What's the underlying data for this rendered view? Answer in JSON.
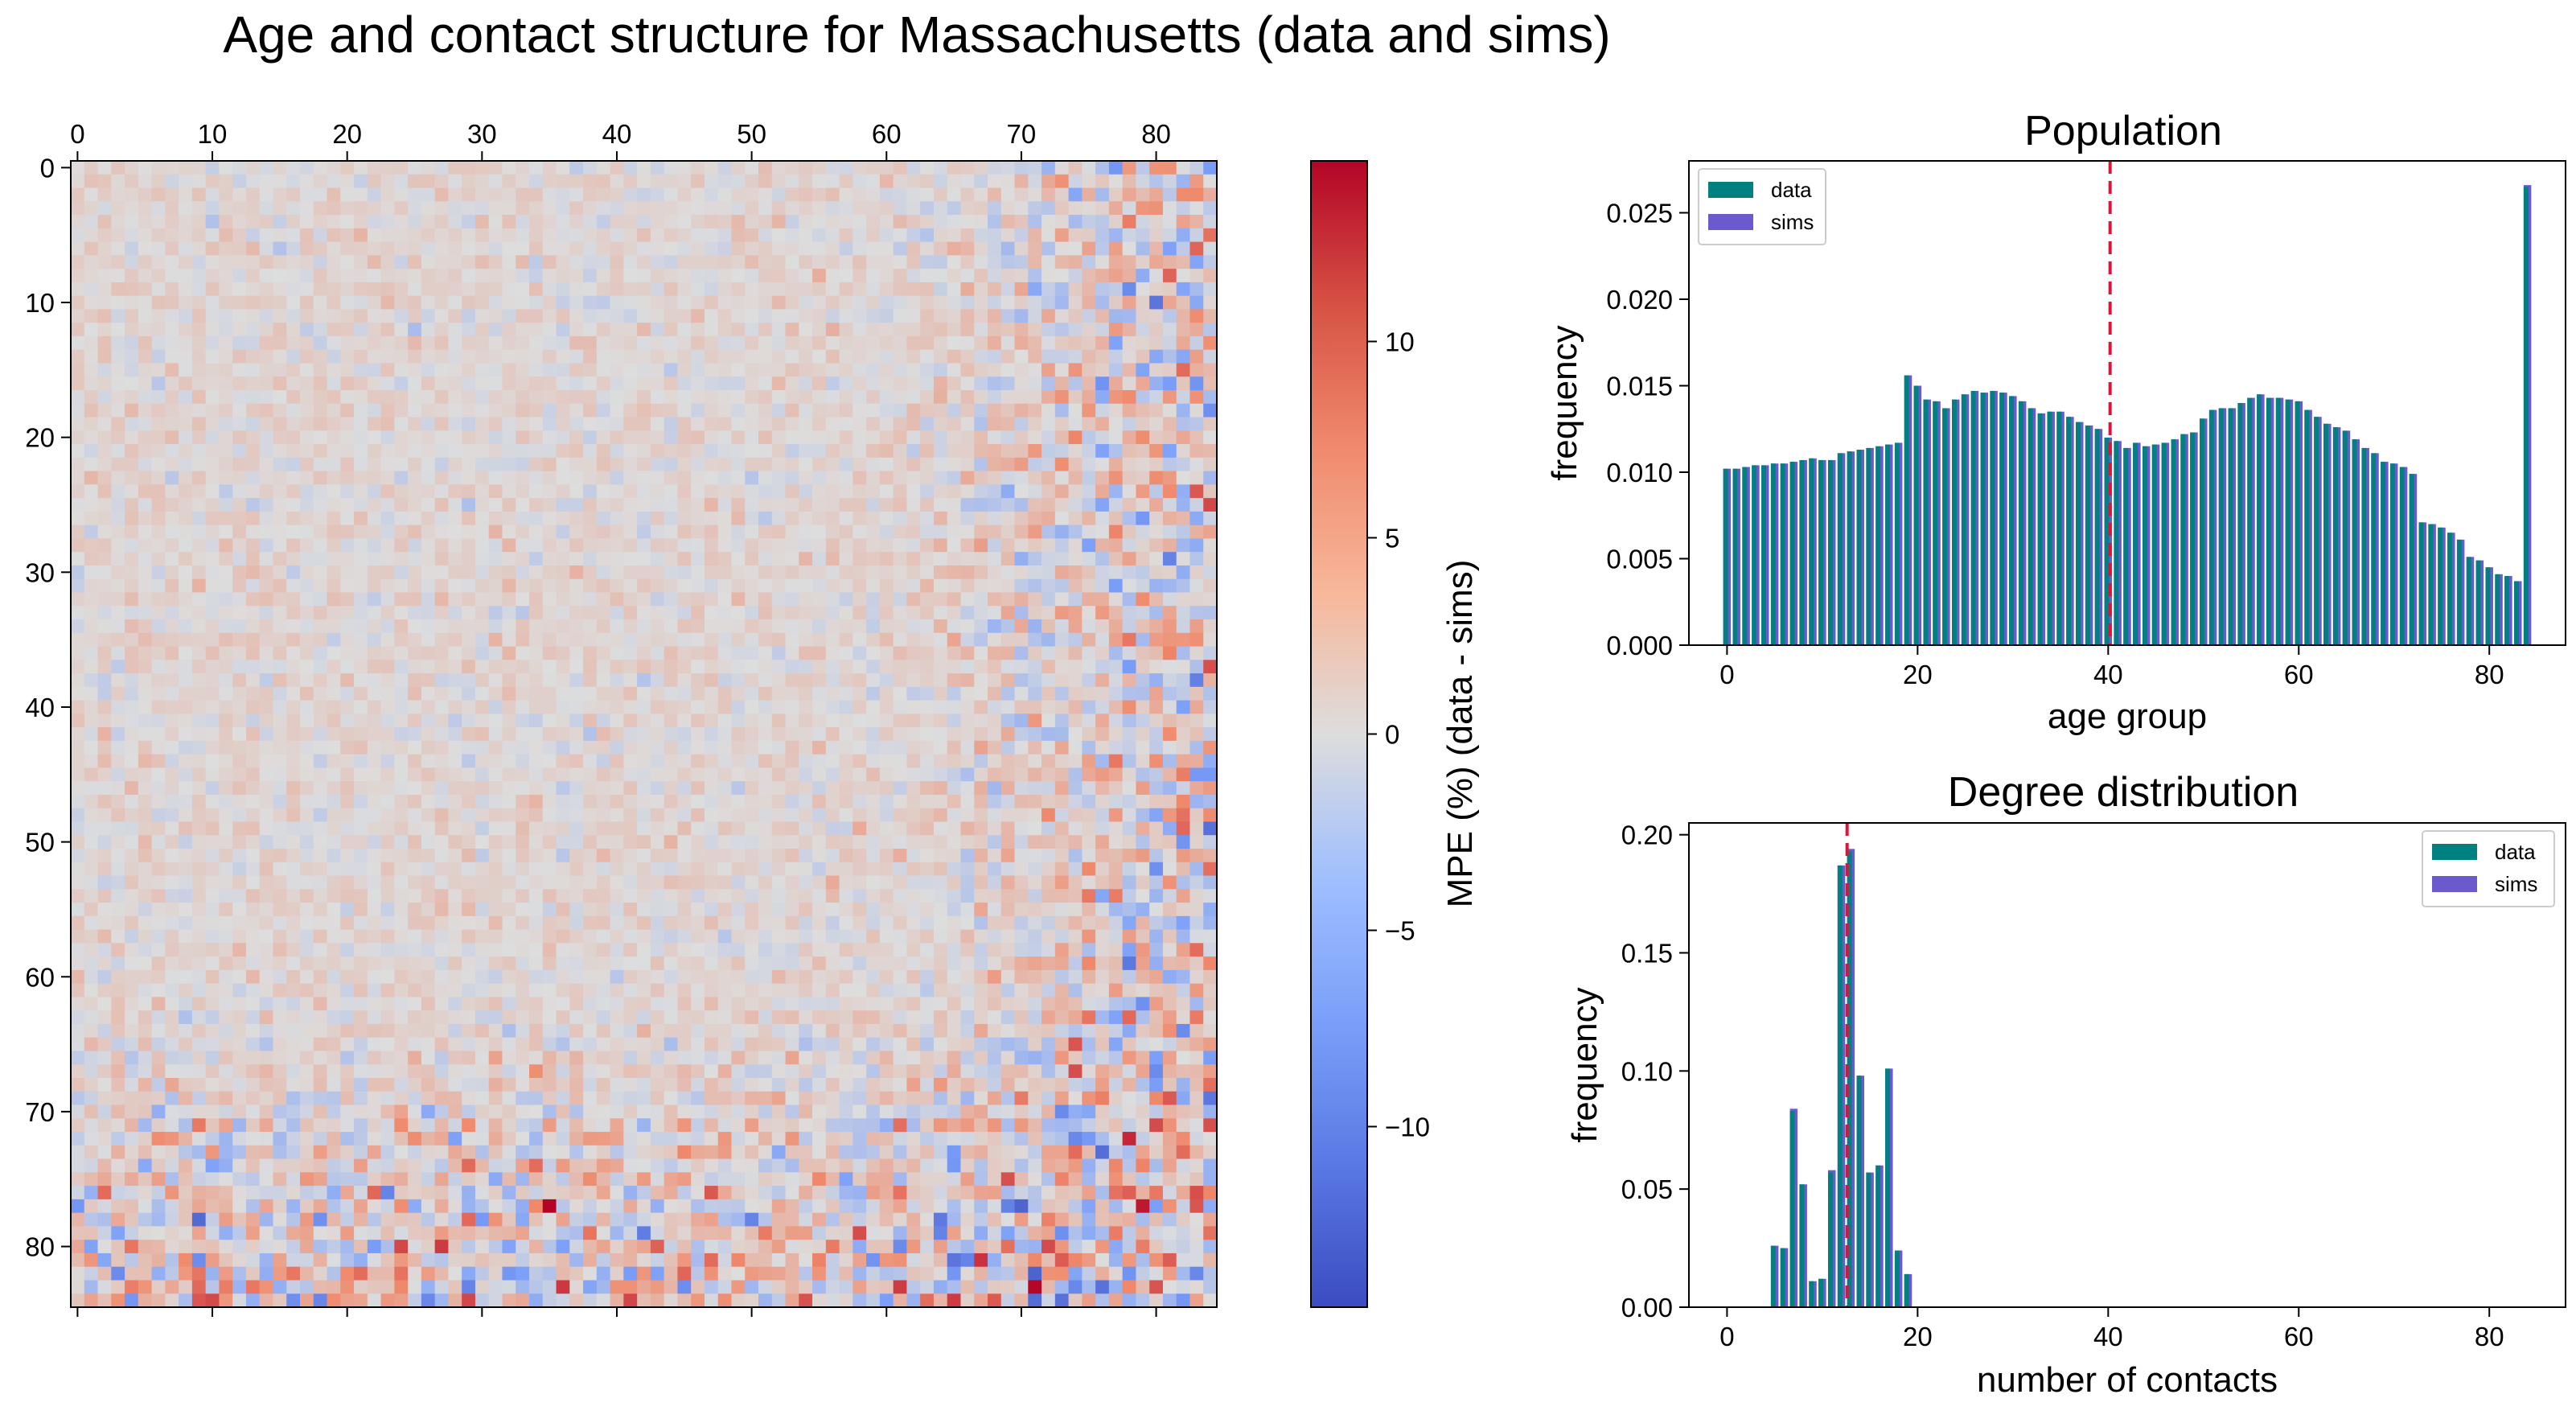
{
  "figure_title": "Age and contact structure for Massachusetts (data and sims)",
  "colors": {
    "data": "#008080",
    "sims": "#6a5acd",
    "mean_line": "#dc143c",
    "cmap_low": "#3b4cc0",
    "cmap_mid": "#dddddd",
    "cmap_high": "#b40426"
  },
  "chart_data": [
    {
      "type": "heatmap",
      "title": "",
      "xlabel": "",
      "ylabel": "",
      "x_tick_labels": [
        "0",
        "10",
        "20",
        "30",
        "40",
        "50",
        "60",
        "70",
        "80"
      ],
      "y_tick_labels": [
        "0",
        "10",
        "20",
        "30",
        "40",
        "50",
        "60",
        "70",
        "80"
      ],
      "n_ages": 85,
      "colorbar": {
        "label": "MPE (%) (data - sims)",
        "vmin": -14.6,
        "vmax": 14.6,
        "tick_values": [
          -10,
          -5,
          0,
          5,
          10
        ],
        "tick_labels": [
          "−10",
          "−5",
          "0",
          "5",
          "10"
        ],
        "colormap": "coolwarm"
      },
      "highlights": [
        {
          "row": 9,
          "col": 78,
          "value": -9
        },
        {
          "row": 0,
          "col": 77,
          "value": -8
        },
        {
          "row": 4,
          "col": 78,
          "value": 8
        },
        {
          "row": 15,
          "col": 82,
          "value": 9
        },
        {
          "row": 78,
          "col": 9,
          "value": -12
        },
        {
          "row": 81,
          "col": 65,
          "value": -11
        },
        {
          "row": 82,
          "col": 3,
          "value": -9
        },
        {
          "row": 76,
          "col": 47,
          "value": 10
        },
        {
          "row": 76,
          "col": 2,
          "value": 9
        },
        {
          "row": 83,
          "col": 11,
          "value": 8
        },
        {
          "row": 81,
          "col": 47,
          "value": 9
        },
        {
          "row": 77,
          "col": 0,
          "value": -8
        },
        {
          "row": 64,
          "col": 82,
          "value": -9
        },
        {
          "row": 73,
          "col": 82,
          "value": 9
        },
        {
          "row": 38,
          "col": 83,
          "value": -10
        },
        {
          "row": 45,
          "col": 82,
          "value": 8
        }
      ]
    },
    {
      "type": "bar",
      "title": "Population",
      "xlabel": "age group",
      "ylabel": "frequency",
      "xlim": [
        -4,
        88
      ],
      "ylim": [
        0,
        0.028
      ],
      "x_tick_values": [
        0,
        20,
        40,
        60,
        80
      ],
      "x_tick_labels": [
        "0",
        "20",
        "40",
        "60",
        "80"
      ],
      "y_tick_values": [
        0,
        0.005,
        0.01,
        0.015,
        0.02,
        0.025
      ],
      "y_tick_labels": [
        "0.000",
        "0.005",
        "0.010",
        "0.015",
        "0.020",
        "0.025"
      ],
      "mean_line_x": 40.2,
      "legend": {
        "position": "upper left",
        "entries": [
          "data",
          "sims"
        ]
      },
      "x": [
        0,
        1,
        2,
        3,
        4,
        5,
        6,
        7,
        8,
        9,
        10,
        11,
        12,
        13,
        14,
        15,
        16,
        17,
        18,
        19,
        20,
        21,
        22,
        23,
        24,
        25,
        26,
        27,
        28,
        29,
        30,
        31,
        32,
        33,
        34,
        35,
        36,
        37,
        38,
        39,
        40,
        41,
        42,
        43,
        44,
        45,
        46,
        47,
        48,
        49,
        50,
        51,
        52,
        53,
        54,
        55,
        56,
        57,
        58,
        59,
        60,
        61,
        62,
        63,
        64,
        65,
        66,
        67,
        68,
        69,
        70,
        71,
        72,
        73,
        74,
        75,
        76,
        77,
        78,
        79,
        80,
        81,
        82,
        83,
        84
      ],
      "series": [
        {
          "name": "data",
          "values": [
            0.0102,
            0.0102,
            0.0103,
            0.0104,
            0.0104,
            0.0105,
            0.0105,
            0.0106,
            0.0107,
            0.0108,
            0.0107,
            0.0107,
            0.0111,
            0.0112,
            0.0113,
            0.0114,
            0.0115,
            0.0116,
            0.0117,
            0.0156,
            0.015,
            0.0142,
            0.0141,
            0.0137,
            0.0142,
            0.0145,
            0.0147,
            0.0146,
            0.0147,
            0.0146,
            0.0144,
            0.0141,
            0.0137,
            0.0134,
            0.0135,
            0.0135,
            0.0132,
            0.0129,
            0.0127,
            0.0125,
            0.012,
            0.0118,
            0.0114,
            0.0117,
            0.0115,
            0.0116,
            0.0117,
            0.0119,
            0.0122,
            0.0123,
            0.0131,
            0.0136,
            0.0137,
            0.0137,
            0.014,
            0.0143,
            0.0145,
            0.0143,
            0.0143,
            0.0142,
            0.0141,
            0.0136,
            0.0132,
            0.0128,
            0.0126,
            0.0124,
            0.0119,
            0.0114,
            0.0111,
            0.0106,
            0.0105,
            0.0103,
            0.0099,
            0.0071,
            0.007,
            0.0068,
            0.0065,
            0.0061,
            0.0051,
            0.0049,
            0.0045,
            0.0041,
            0.004,
            0.0037,
            0.0265
          ]
        },
        {
          "name": "sims",
          "values": [
            0.0102,
            0.0102,
            0.0103,
            0.0104,
            0.0104,
            0.0105,
            0.0105,
            0.0106,
            0.0107,
            0.0108,
            0.0107,
            0.0107,
            0.0111,
            0.0112,
            0.0113,
            0.0114,
            0.0115,
            0.0116,
            0.0117,
            0.0156,
            0.015,
            0.0142,
            0.0141,
            0.0137,
            0.0142,
            0.0145,
            0.0147,
            0.0146,
            0.0147,
            0.0146,
            0.0144,
            0.0141,
            0.0137,
            0.0134,
            0.0135,
            0.0135,
            0.0132,
            0.0129,
            0.0127,
            0.0125,
            0.012,
            0.0118,
            0.0114,
            0.0117,
            0.0115,
            0.0116,
            0.0117,
            0.0119,
            0.0122,
            0.0123,
            0.0131,
            0.0136,
            0.0137,
            0.0137,
            0.014,
            0.0143,
            0.0145,
            0.0143,
            0.0143,
            0.0142,
            0.0141,
            0.0136,
            0.0132,
            0.0128,
            0.0126,
            0.0124,
            0.0119,
            0.0114,
            0.0111,
            0.0106,
            0.0105,
            0.0103,
            0.0099,
            0.0071,
            0.007,
            0.0068,
            0.0065,
            0.0061,
            0.0051,
            0.0049,
            0.0045,
            0.0041,
            0.004,
            0.0037,
            0.0266
          ]
        }
      ]
    },
    {
      "type": "bar",
      "title": "Degree distribution",
      "xlabel": "number of contacts",
      "ylabel": "frequency",
      "xlim": [
        -4,
        88
      ],
      "ylim": [
        0,
        0.205
      ],
      "x_tick_values": [
        0,
        20,
        40,
        60,
        80
      ],
      "x_tick_labels": [
        "0",
        "20",
        "40",
        "60",
        "80"
      ],
      "y_tick_values": [
        0,
        0.05,
        0.1,
        0.15,
        0.2
      ],
      "y_tick_labels": [
        "0.00",
        "0.05",
        "0.10",
        "0.15",
        "0.20"
      ],
      "mean_line_x": 12.6,
      "legend": {
        "position": "upper right",
        "entries": [
          "data",
          "sims"
        ]
      },
      "x": [
        5,
        6,
        7,
        8,
        9,
        10,
        11,
        12,
        13,
        14,
        15,
        16,
        17,
        18,
        19
      ],
      "series": [
        {
          "name": "data",
          "values": [
            0.026,
            0.025,
            0.083,
            0.052,
            0.011,
            0.012,
            0.057,
            0.187,
            0.193,
            0.098,
            0.057,
            0.06,
            0.101,
            0.024,
            0.014
          ]
        },
        {
          "name": "sims",
          "values": [
            0.026,
            0.025,
            0.084,
            0.052,
            0.011,
            0.012,
            0.058,
            0.187,
            0.194,
            0.098,
            0.057,
            0.06,
            0.101,
            0.024,
            0.014
          ]
        }
      ]
    }
  ]
}
